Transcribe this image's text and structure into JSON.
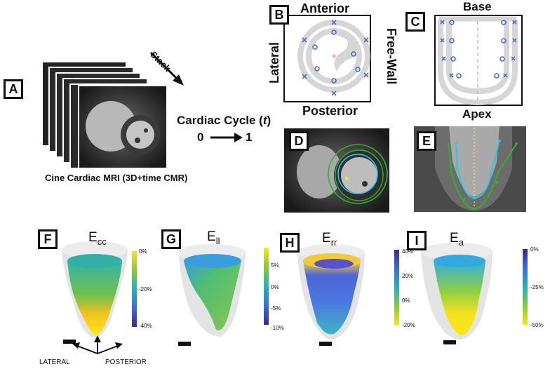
{
  "panels": {
    "a": "A",
    "b": "B",
    "c": "C",
    "d": "D",
    "e": "E",
    "f": "F",
    "g": "G",
    "h": "H",
    "i": "I"
  },
  "panel_a": {
    "stack_label": "Stack",
    "cycle_label": "Cardiac Cycle (",
    "cycle_var": "t",
    "cycle_close": ")",
    "cycle_start": "0",
    "cycle_end": "1",
    "caption": "Cine Cardiac MRI (3D+time CMR)"
  },
  "panel_b": {
    "top": "Anterior",
    "left": "Lateral",
    "right": "Free-Wall",
    "bottom": "Posterior"
  },
  "panel_c": {
    "top": "Base",
    "bottom": "Apex"
  },
  "strain_maps": [
    {
      "id": "f",
      "symbol": "E",
      "sub": "cc",
      "ticks": [
        "0%",
        "-20%",
        "-40%"
      ]
    },
    {
      "id": "g",
      "symbol": "E",
      "sub": "ll",
      "ticks": [
        "5%",
        "0%",
        "-5%",
        "-10%"
      ]
    },
    {
      "id": "h",
      "symbol": "E",
      "sub": "rr",
      "ticks": [
        "40%",
        "20%",
        "0%",
        "-20%"
      ]
    },
    {
      "id": "i",
      "symbol": "E",
      "sub": "a",
      "ticks": [
        "0%",
        "-25%",
        "-50%"
      ]
    }
  ],
  "orientation": {
    "left": "LATERAL",
    "right": "POSTERIOR"
  },
  "colors": {
    "marker_blue": "#4a6fc9",
    "contour_cyan": "#2fc4e8",
    "contour_green": "#33b030",
    "axis_yellow": "#f0e040",
    "dash_red": "#e89a9a"
  }
}
